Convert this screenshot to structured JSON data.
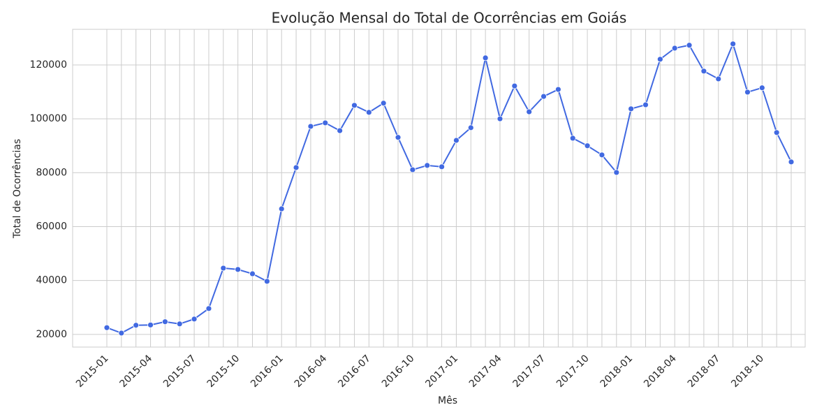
{
  "chart_data": {
    "type": "line",
    "title": "Evolução Mensal do Total de Ocorrências em Goiás",
    "x_label": "Mês",
    "y_label": "Total de Ocorrências",
    "categories": [
      "2015-01",
      null,
      null,
      "2015-04",
      null,
      null,
      "2015-07",
      null,
      null,
      "2015-10",
      null,
      null,
      "2016-01",
      null,
      null,
      "2016-04",
      null,
      null,
      "2016-07",
      null,
      null,
      "2016-10",
      null,
      null,
      "2017-01",
      null,
      null,
      "2017-04",
      null,
      null,
      "2017-07",
      null,
      null,
      "2017-10",
      null,
      null,
      "2018-01",
      null,
      null,
      "2018-04",
      null,
      null,
      "2018-07",
      null,
      null,
      "2018-10",
      null,
      null
    ],
    "series": [
      {
        "name": "Total de Ocorrências",
        "color": "#4169e1",
        "values": [
          22500,
          20500,
          23400,
          23500,
          24700,
          23900,
          25700,
          29600,
          44600,
          44100,
          42500,
          39700,
          66600,
          81900,
          97200,
          98500,
          95600,
          105000,
          102400,
          105800,
          93100,
          81100,
          82700,
          82200,
          92000,
          96700,
          122600,
          100000,
          112200,
          102600,
          108300,
          110900,
          92800,
          90000,
          86600,
          80100,
          103700,
          105200,
          122100,
          126200,
          127300,
          117700,
          114800,
          127800,
          109900,
          111500,
          94900,
          84000
        ]
      }
    ],
    "ylim": [
      15300,
      133200
    ],
    "yticks": [
      20000,
      40000,
      60000,
      80000,
      100000,
      120000
    ],
    "grid": true
  }
}
